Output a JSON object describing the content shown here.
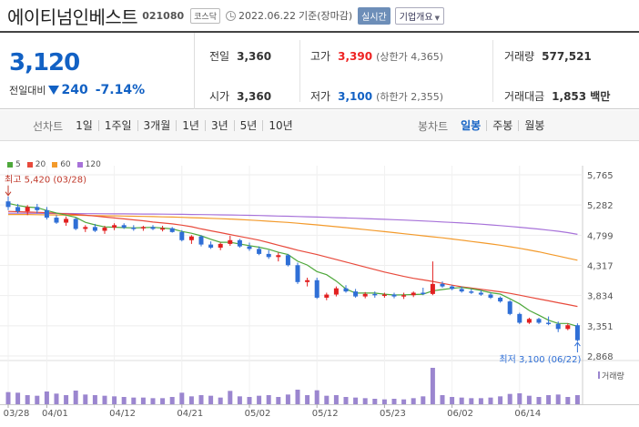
{
  "header": {
    "name": "에이티넘인베스트",
    "code": "021080",
    "market": "코스닥",
    "date": "2022.06.22",
    "basis": "기준(장마감)",
    "realtime": "실시간",
    "company_info": "기업개요"
  },
  "price": {
    "current": "3,120",
    "change_label": "전일대비",
    "change": "240",
    "change_pct": "-7.14%",
    "direction": "down"
  },
  "stats": {
    "prev_close_label": "전일",
    "prev_close": "3,360",
    "high_label": "고가",
    "high": "3,390",
    "upper_limit": "(상한가 4,365)",
    "volume_label": "거래량",
    "volume": "577,521",
    "open_label": "시가",
    "open": "3,360",
    "low_label": "저가",
    "low": "3,100",
    "lower_limit": "(하한가 2,355)",
    "amount_label": "거래대금",
    "amount": "1,853 백만"
  },
  "periods": {
    "line_label": "선차트",
    "line_items": [
      "1일",
      "1주일",
      "3개월",
      "1년",
      "3년",
      "5년",
      "10년"
    ],
    "candle_label": "봉차트",
    "candle_items": [
      "일봉",
      "주봉",
      "월봉"
    ],
    "candle_active": 0
  },
  "chart_data": {
    "type": "candlestick",
    "legend": [
      {
        "name": "5",
        "color": "#4ea83b"
      },
      {
        "name": "20",
        "color": "#e84a3c"
      },
      {
        "name": "60",
        "color": "#f39a2b"
      },
      {
        "name": "120",
        "color": "#a772d9"
      }
    ],
    "y_ticks": [
      "5,765",
      "5,282",
      "4,799",
      "4,317",
      "3,834",
      "3,351",
      "2,868"
    ],
    "y_tick_values": [
      5765,
      5282,
      4799,
      4317,
      3834,
      3351,
      2868
    ],
    "x_ticks": [
      "03/28",
      "04/01",
      "04/12",
      "04/21",
      "05/02",
      "05/12",
      "05/23",
      "06/02",
      "06/14"
    ],
    "x_tick_index": [
      0,
      4,
      11,
      18,
      25,
      32,
      39,
      46,
      53
    ],
    "high_annotation": "최고 5,420 (03/28)",
    "low_annotation": "최저 3,100 (06/22)",
    "volume_label": "거래량",
    "colors": {
      "up": "#e22020",
      "down": "#2f6fd6",
      "volume": "#9b86cf"
    },
    "candles": [
      [
        5340,
        5420,
        5200,
        5250,
        40
      ],
      [
        5250,
        5300,
        5150,
        5180,
        38
      ],
      [
        5180,
        5280,
        5120,
        5250,
        30
      ],
      [
        5250,
        5300,
        5150,
        5200,
        28
      ],
      [
        5200,
        5250,
        5050,
        5080,
        42
      ],
      [
        5080,
        5120,
        4980,
        5000,
        35
      ],
      [
        5000,
        5100,
        4950,
        5060,
        30
      ],
      [
        5060,
        5080,
        4880,
        4900,
        45
      ],
      [
        4900,
        4960,
        4850,
        4930,
        32
      ],
      [
        4930,
        4980,
        4850,
        4870,
        30
      ],
      [
        4870,
        4950,
        4820,
        4920,
        28
      ],
      [
        4920,
        4990,
        4880,
        4960,
        26
      ],
      [
        4960,
        4990,
        4900,
        4920,
        24
      ],
      [
        4920,
        4960,
        4870,
        4910,
        22
      ],
      [
        4910,
        4950,
        4870,
        4930,
        22
      ],
      [
        4930,
        4960,
        4880,
        4900,
        20
      ],
      [
        4900,
        4950,
        4860,
        4910,
        20
      ],
      [
        4910,
        4930,
        4840,
        4850,
        24
      ],
      [
        4850,
        4880,
        4700,
        4720,
        38
      ],
      [
        4720,
        4800,
        4660,
        4780,
        26
      ],
      [
        4780,
        4800,
        4620,
        4650,
        30
      ],
      [
        4650,
        4700,
        4580,
        4600,
        28
      ],
      [
        4600,
        4680,
        4560,
        4660,
        22
      ],
      [
        4660,
        4790,
        4630,
        4720,
        44
      ],
      [
        4720,
        4740,
        4600,
        4620,
        26
      ],
      [
        4620,
        4680,
        4550,
        4580,
        24
      ],
      [
        4580,
        4620,
        4480,
        4500,
        28
      ],
      [
        4500,
        4560,
        4420,
        4450,
        30
      ],
      [
        4450,
        4520,
        4380,
        4480,
        24
      ],
      [
        4480,
        4500,
        4300,
        4320,
        32
      ],
      [
        4320,
        4360,
        4020,
        4050,
        48
      ],
      [
        4050,
        4120,
        3980,
        4080,
        30
      ],
      [
        4080,
        4120,
        3780,
        3800,
        46
      ],
      [
        3800,
        3880,
        3760,
        3850,
        28
      ],
      [
        3850,
        3980,
        3820,
        3950,
        30
      ],
      [
        3950,
        4000,
        3880,
        3900,
        24
      ],
      [
        3900,
        3940,
        3800,
        3820,
        22
      ],
      [
        3820,
        3890,
        3790,
        3860,
        20
      ],
      [
        3860,
        3900,
        3800,
        3840,
        18
      ],
      [
        3840,
        3880,
        3800,
        3850,
        16
      ],
      [
        3850,
        3880,
        3790,
        3820,
        18
      ],
      [
        3820,
        3880,
        3780,
        3840,
        16
      ],
      [
        3840,
        3900,
        3810,
        3880,
        20
      ],
      [
        3880,
        3960,
        3840,
        3860,
        26
      ],
      [
        3860,
        4380,
        3840,
        4020,
        120
      ],
      [
        4020,
        4060,
        3960,
        3980,
        30
      ],
      [
        3980,
        4000,
        3920,
        3940,
        24
      ],
      [
        3940,
        3980,
        3880,
        3900,
        22
      ],
      [
        3900,
        3940,
        3860,
        3880,
        20
      ],
      [
        3880,
        3920,
        3830,
        3850,
        20
      ],
      [
        3850,
        3880,
        3780,
        3800,
        22
      ],
      [
        3800,
        3820,
        3720,
        3740,
        26
      ],
      [
        3740,
        3760,
        3520,
        3540,
        34
      ],
      [
        3540,
        3560,
        3380,
        3400,
        36
      ],
      [
        3400,
        3480,
        3380,
        3460,
        28
      ],
      [
        3460,
        3480,
        3380,
        3400,
        24
      ],
      [
        3400,
        3500,
        3360,
        3380,
        30
      ],
      [
        3380,
        3420,
        3250,
        3300,
        32
      ],
      [
        3300,
        3390,
        3280,
        3360,
        24
      ],
      [
        3360,
        3390,
        3100,
        3120,
        30
      ]
    ],
    "ma": {
      "5": [
        5310,
        5275,
        5250,
        5240,
        5195,
        5155,
        5120,
        5085,
        5005,
        4965,
        4932,
        4926,
        4920,
        4916,
        4920,
        4925,
        4914,
        4900,
        4860,
        4830,
        4790,
        4734,
        4686,
        4686,
        4658,
        4632,
        4608,
        4574,
        4526,
        4490,
        4384,
        4322,
        4218,
        4168,
        4066,
        3940,
        3874,
        3874,
        3874,
        3856,
        3844,
        3846,
        3850,
        3856,
        3910,
        3930,
        3950,
        3964,
        3944,
        3916,
        3880,
        3858,
        3782,
        3702,
        3596,
        3520,
        3440,
        3388,
        3388,
        3342
      ],
      "20": [
        5180,
        5175,
        5170,
        5165,
        5160,
        5150,
        5140,
        5130,
        5120,
        5105,
        5090,
        5075,
        5060,
        5045,
        5030,
        5010,
        4995,
        4980,
        4960,
        4935,
        4900,
        4870,
        4840,
        4810,
        4780,
        4750,
        4720,
        4680,
        4640,
        4600,
        4560,
        4525,
        4490,
        4450,
        4410,
        4370,
        4330,
        4290,
        4250,
        4210,
        4175,
        4140,
        4110,
        4085,
        4060,
        4030,
        4000,
        3975,
        3955,
        3935,
        3915,
        3895,
        3870,
        3840,
        3810,
        3780,
        3750,
        3720,
        3690,
        3660
      ],
      "60": [
        5130,
        5130,
        5130,
        5128,
        5125,
        5123,
        5120,
        5118,
        5115,
        5112,
        5110,
        5108,
        5105,
        5102,
        5100,
        5097,
        5093,
        5090,
        5085,
        5080,
        5075,
        5069,
        5063,
        5057,
        5050,
        5042,
        5033,
        5023,
        5013,
        5003,
        4991,
        4978,
        4964,
        4950,
        4935,
        4920,
        4905,
        4889,
        4872,
        4856,
        4840,
        4823,
        4807,
        4790,
        4774,
        4757,
        4739,
        4720,
        4700,
        4680,
        4660,
        4640,
        4615,
        4590,
        4563,
        4533,
        4500,
        4467,
        4432,
        4400
      ],
      "120": [
        5150,
        5150,
        5150,
        5149,
        5148,
        5147,
        5146,
        5145,
        5144,
        5143,
        5142,
        5141,
        5140,
        5139,
        5138,
        5137,
        5136,
        5135,
        5133,
        5131,
        5129,
        5127,
        5125,
        5123,
        5120,
        5117,
        5114,
        5110,
        5106,
        5102,
        5098,
        5094,
        5090,
        5085,
        5080,
        5075,
        5070,
        5065,
        5059,
        5053,
        5047,
        5041,
        5034,
        5027,
        5019,
        5011,
        5003,
        4995,
        4986,
        4976,
        4965,
        4953,
        4940,
        4926,
        4912,
        4898,
        4880,
        4862,
        4840,
        4813
      ]
    }
  }
}
